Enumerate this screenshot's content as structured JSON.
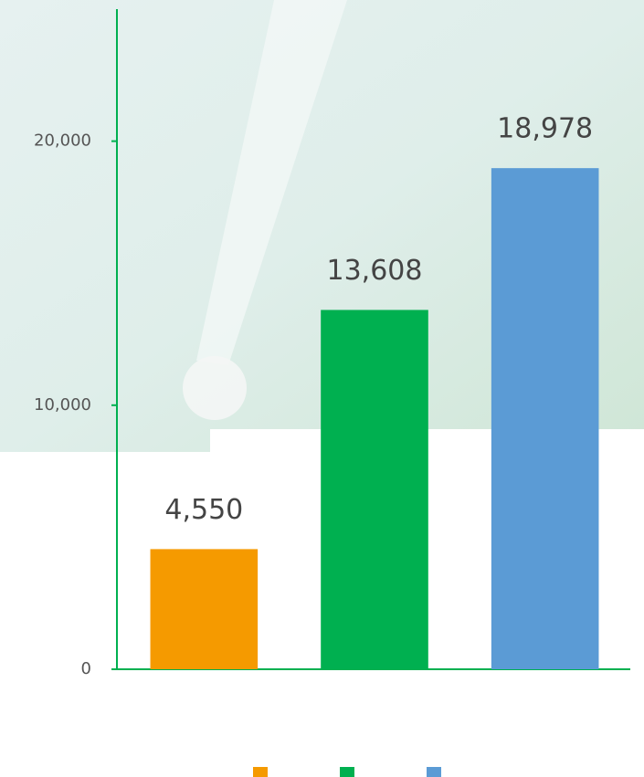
{
  "chart_data": {
    "type": "bar",
    "categories": [
      null,
      null,
      null
    ],
    "values": [
      4550,
      13608,
      18978
    ],
    "value_labels": [
      "4,550",
      "13,608",
      "18,978"
    ],
    "colors": [
      "#f59a00",
      "#00b050",
      "#5b9bd5"
    ],
    "ylim": [
      0,
      25000
    ],
    "yticks": [
      0,
      {
        "value": 10000,
        "label": "10,000"
      },
      {
        "value": 20000,
        "label": "20,000"
      }
    ],
    "legend": "bottom"
  }
}
